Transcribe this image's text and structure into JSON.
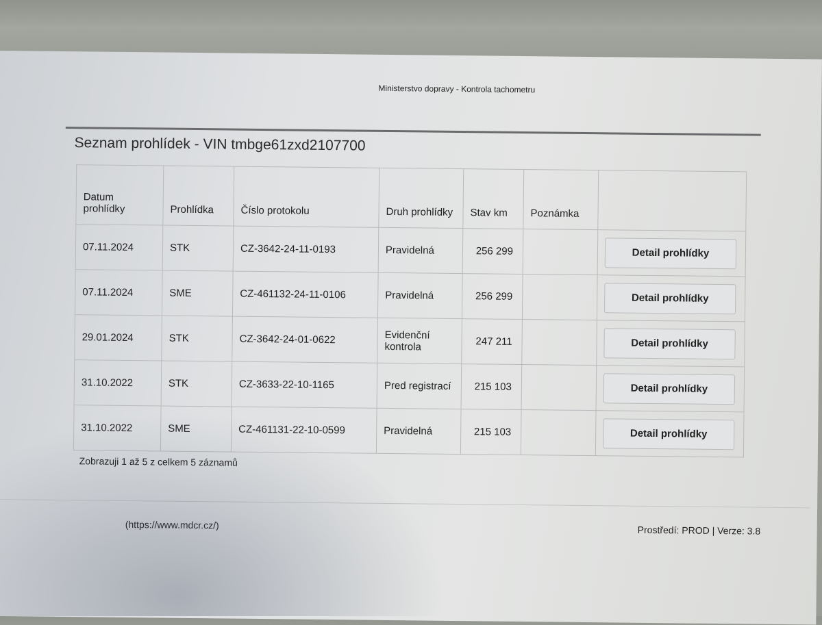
{
  "header": {
    "site_title": "Ministerstvo dopravy - Kontrola tachometru"
  },
  "page_title": "Seznam prohlídek - VIN tmbge61zxd2107700",
  "table": {
    "columns": [
      "Datum prohlídky",
      "Prohlídka",
      "Číslo protokolu",
      "Druh prohlídky",
      "Stav km",
      "Poznámka",
      ""
    ],
    "rows": [
      {
        "date": "07.11.2024",
        "type": "STK",
        "protocol": "CZ-3642-24-11-0193",
        "kind": "Pravidelná",
        "km": "256 299",
        "note": "",
        "action": "Detail prohlídky"
      },
      {
        "date": "07.11.2024",
        "type": "SME",
        "protocol": "CZ-461132-24-11-0106",
        "kind": "Pravidelná",
        "km": "256 299",
        "note": "",
        "action": "Detail prohlídky"
      },
      {
        "date": "29.01.2024",
        "type": "STK",
        "protocol": "CZ-3642-24-01-0622",
        "kind": "Evidenční kontrola",
        "km": "247 211",
        "note": "",
        "action": "Detail prohlídky"
      },
      {
        "date": "31.10.2022",
        "type": "STK",
        "protocol": "CZ-3633-22-10-1165",
        "kind": "Pred registrací",
        "km": "215 103",
        "note": "",
        "action": "Detail prohlídky"
      },
      {
        "date": "31.10.2022",
        "type": "SME",
        "protocol": "CZ-461131-22-10-0599",
        "kind": "Pravidelná",
        "km": "215 103",
        "note": "",
        "action": "Detail prohlídky"
      }
    ]
  },
  "table_info": "Zobrazuji 1 až 5 z celkem 5 záznamů",
  "footer": {
    "link": "(https://www.mdcr.cz/)",
    "environment": "Prostředí: PROD | Verze: 3.8"
  }
}
